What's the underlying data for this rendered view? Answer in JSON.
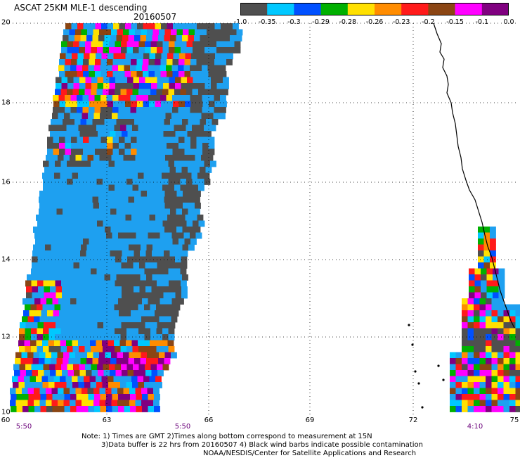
{
  "title": "ASCAT 25KM MLE-1 descending",
  "date": "20160507",
  "colorbar": {
    "colors": [
      "#4f4f4f",
      "#00c8ff",
      "#0050ff",
      "#00b000",
      "#ffe000",
      "#ff8c00",
      "#ff1a1a",
      "#8b4513",
      "#ff00ff",
      "#800080"
    ],
    "labels": [
      "-1.0",
      "-0.35",
      "-0.3",
      "-0.29",
      "-0.28",
      "-0.26",
      "-0.23",
      "-0.2",
      "-0.15",
      "-0.1",
      "0.0"
    ]
  },
  "axes": {
    "lat_labels": [
      "10",
      "12",
      "14",
      "16",
      "18",
      "20"
    ],
    "lon_labels": [
      "60",
      "63",
      "66",
      "69",
      "72",
      "75"
    ]
  },
  "time_labels": [
    "5:50",
    "5:50",
    "4:10"
  ],
  "notes": {
    "line1": "Note: 1) Times are GMT 2)Times along bottom correspond to measurement at 15N",
    "line2": "3)Data buffer is 22 hrs from 20160507 4) Black wind barbs indicate possible contamination",
    "line3": "NOAA/NESDIS/Center for Satellite Applications and Research"
  },
  "palette": {
    "background": "#ffffff",
    "swath_fill": "#1ea0f0",
    "dark_cells": "#4f4f4f",
    "coastline": "#000000",
    "time_label_color": "#6a007a"
  }
}
